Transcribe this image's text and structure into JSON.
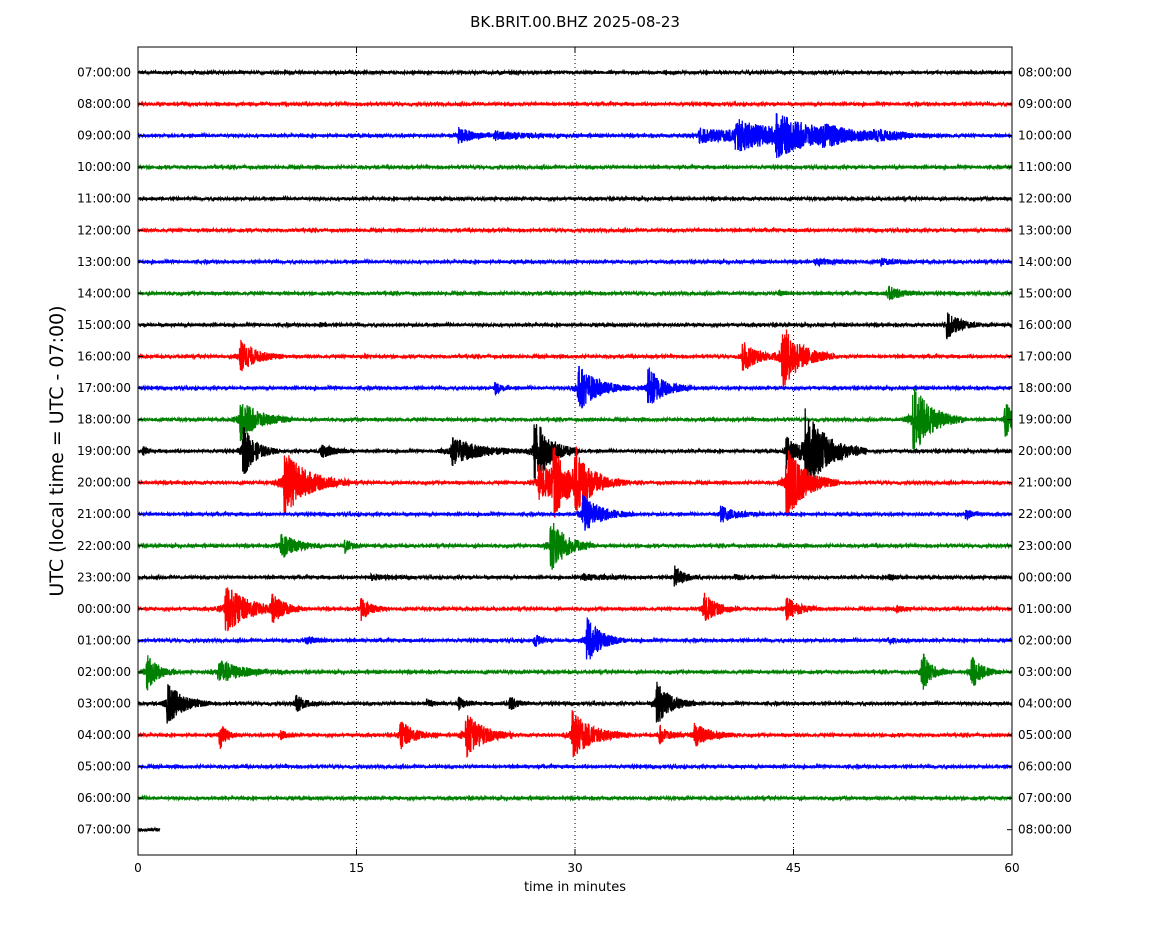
{
  "chart_data": {
    "type": "line",
    "title": "BK.BRIT.00.BHZ 2025-08-23",
    "xlabel": "time in minutes",
    "ylabel": "UTC (local time = UTC - 07:00)",
    "xlim": [
      0,
      60
    ],
    "x_ticks": [
      "0",
      "15",
      "30",
      "45",
      "60"
    ],
    "x_tick_values": [
      0,
      15,
      30,
      45,
      60
    ],
    "grid": "vertical dotted at 15, 30, 45",
    "colors": [
      "#000000",
      "#ff0000",
      "#0000ff",
      "#008000"
    ],
    "left_labels": [
      "07:00:00",
      "08:00:00",
      "09:00:00",
      "10:00:00",
      "11:00:00",
      "12:00:00",
      "13:00:00",
      "14:00:00",
      "15:00:00",
      "16:00:00",
      "17:00:00",
      "18:00:00",
      "19:00:00",
      "20:00:00",
      "21:00:00",
      "22:00:00",
      "23:00:00",
      "00:00:00",
      "01:00:00",
      "02:00:00",
      "03:00:00",
      "04:00:00",
      "05:00:00",
      "06:00:00",
      "07:00:00"
    ],
    "right_labels": [
      "08:00:00",
      "09:00:00",
      "10:00:00",
      "11:00:00",
      "12:00:00",
      "13:00:00",
      "14:00:00",
      "15:00:00",
      "16:00:00",
      "17:00:00",
      "18:00:00",
      "19:00:00",
      "20:00:00",
      "21:00:00",
      "22:00:00",
      "23:00:00",
      "00:00:00",
      "01:00:00",
      "02:00:00",
      "03:00:00",
      "04:00:00",
      "05:00:00",
      "06:00:00",
      "07:00:00",
      "08:00:00"
    ],
    "traces": [
      {
        "end_min": 60,
        "events": []
      },
      {
        "end_min": 60,
        "events": []
      },
      {
        "end_min": 60,
        "events": [
          [
            22.0,
            0.35,
            0.9
          ],
          [
            24.5,
            0.15,
            2.0
          ],
          [
            38.5,
            0.3,
            2.5
          ],
          [
            41.0,
            0.6,
            2.5
          ],
          [
            43.8,
            0.7,
            3.0
          ],
          [
            47.0,
            0.2,
            2.5
          ],
          [
            50.5,
            0.12,
            2.0
          ]
        ]
      },
      {
        "end_min": 60,
        "events": []
      },
      {
        "end_min": 60,
        "events": []
      },
      {
        "end_min": 60,
        "events": []
      },
      {
        "end_min": 60,
        "events": [
          [
            46.5,
            0.1,
            1.5
          ],
          [
            51.0,
            0.12,
            1.0
          ]
        ]
      },
      {
        "end_min": 60,
        "events": [
          [
            44.0,
            0.12,
            0.3
          ],
          [
            51.5,
            0.28,
            0.9
          ]
        ]
      },
      {
        "end_min": 60,
        "events": [
          [
            12.5,
            0.08,
            0.3
          ],
          [
            55.5,
            0.6,
            0.8
          ]
        ]
      },
      {
        "end_min": 60,
        "events": [
          [
            7.0,
            0.7,
            1.0
          ],
          [
            41.5,
            0.7,
            0.9
          ],
          [
            44.2,
            1.4,
            1.2
          ],
          [
            15.5,
            0.08,
            0.3
          ]
        ]
      },
      {
        "end_min": 60,
        "events": [
          [
            24.5,
            0.25,
            0.4
          ],
          [
            30.2,
            1.0,
            1.2
          ],
          [
            35.0,
            0.9,
            1.0
          ]
        ]
      },
      {
        "end_min": 60,
        "events": [
          [
            7.0,
            0.9,
            1.2
          ],
          [
            53.2,
            1.5,
            1.2
          ],
          [
            59.5,
            0.8,
            0.6
          ]
        ]
      },
      {
        "end_min": 60,
        "events": [
          [
            0.3,
            0.2,
            0.3
          ],
          [
            7.2,
            1.1,
            0.8
          ],
          [
            12.5,
            0.3,
            0.8
          ],
          [
            21.5,
            0.6,
            1.8
          ],
          [
            27.2,
            1.5,
            1.0
          ],
          [
            44.5,
            0.8,
            0.6
          ],
          [
            45.8,
            1.8,
            1.4
          ]
        ]
      },
      {
        "end_min": 60,
        "events": [
          [
            10.0,
            1.4,
            1.5
          ],
          [
            27.5,
            0.8,
            1.5
          ],
          [
            28.5,
            1.2,
            0.8
          ],
          [
            30.0,
            1.2,
            1.2
          ],
          [
            44.5,
            1.6,
            1.2
          ]
        ]
      },
      {
        "end_min": 60,
        "events": [
          [
            30.5,
            0.8,
            1.2
          ],
          [
            40.0,
            0.35,
            1.0
          ],
          [
            56.8,
            0.2,
            0.5
          ]
        ]
      },
      {
        "end_min": 60,
        "events": [
          [
            9.8,
            0.55,
            1.0
          ],
          [
            14.2,
            0.3,
            0.4
          ],
          [
            28.3,
            1.2,
            1.0
          ]
        ]
      },
      {
        "end_min": 60,
        "events": [
          [
            16.0,
            0.1,
            1.0
          ],
          [
            30.5,
            0.12,
            1.5
          ],
          [
            36.8,
            0.5,
            0.6
          ],
          [
            41.0,
            0.1,
            0.4
          ],
          [
            51.5,
            0.12,
            0.5
          ]
        ]
      },
      {
        "end_min": 60,
        "events": [
          [
            6.0,
            1.0,
            1.5
          ],
          [
            9.2,
            0.5,
            0.8
          ],
          [
            15.3,
            0.5,
            0.6
          ],
          [
            38.8,
            0.7,
            0.8
          ],
          [
            44.5,
            0.5,
            0.8
          ],
          [
            52.0,
            0.15,
            0.5
          ]
        ]
      },
      {
        "end_min": 60,
        "events": [
          [
            11.5,
            0.15,
            0.8
          ],
          [
            27.2,
            0.3,
            0.4
          ],
          [
            30.8,
            1.0,
            0.9
          ],
          [
            51.5,
            0.1,
            0.8
          ]
        ]
      },
      {
        "end_min": 60,
        "events": [
          [
            0.6,
            0.8,
            0.7
          ],
          [
            5.5,
            0.5,
            1.5
          ],
          [
            53.8,
            0.9,
            0.6
          ],
          [
            57.2,
            0.7,
            0.7
          ]
        ]
      },
      {
        "end_min": 60,
        "events": [
          [
            2.0,
            0.9,
            1.0
          ],
          [
            10.8,
            0.4,
            0.6
          ],
          [
            19.8,
            0.15,
            0.4
          ],
          [
            22.0,
            0.25,
            0.5
          ],
          [
            25.5,
            0.3,
            0.5
          ],
          [
            35.6,
            0.9,
            0.9
          ]
        ]
      },
      {
        "end_min": 60,
        "events": [
          [
            5.6,
            0.6,
            0.4
          ],
          [
            9.8,
            0.2,
            0.4
          ],
          [
            18.0,
            0.6,
            0.9
          ],
          [
            22.5,
            1.0,
            1.1
          ],
          [
            29.8,
            1.0,
            1.3
          ],
          [
            35.8,
            0.4,
            0.6
          ],
          [
            38.2,
            0.5,
            1.0
          ]
        ]
      },
      {
        "end_min": 60,
        "events": []
      },
      {
        "end_min": 60,
        "events": []
      },
      {
        "end_min": 1.5,
        "events": []
      }
    ]
  }
}
